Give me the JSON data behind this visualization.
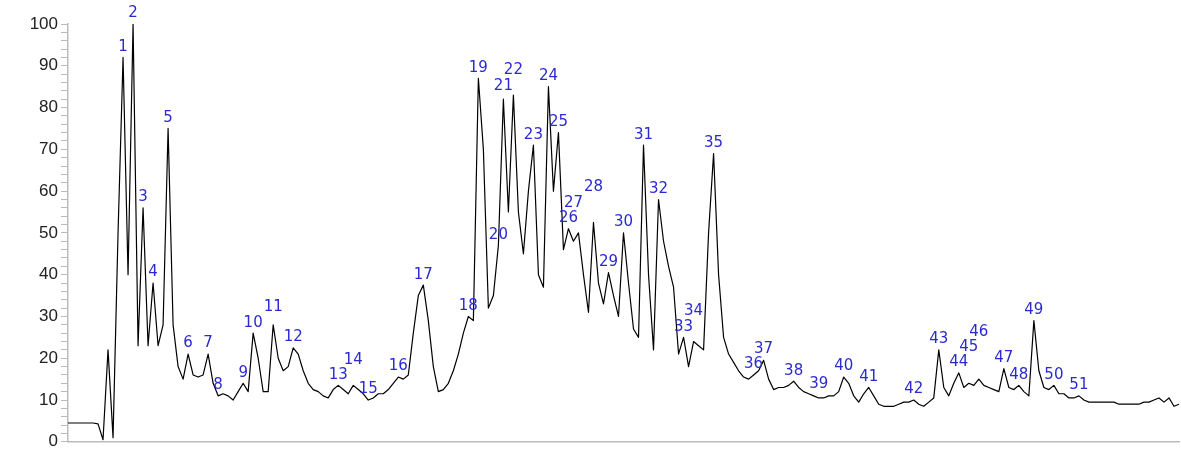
{
  "chart_data": {
    "type": "line",
    "categories": [
      null,
      null,
      null,
      null,
      null,
      null,
      null,
      null,
      null,
      null,
      null,
      null,
      null,
      null,
      null,
      null,
      null,
      null,
      null,
      null,
      null,
      null,
      null,
      null,
      null,
      null,
      null,
      null,
      null,
      null,
      null,
      null,
      null,
      null,
      null,
      null,
      null,
      null,
      null,
      null,
      null,
      null,
      null,
      null,
      null,
      null,
      null,
      null,
      null,
      null,
      null,
      null,
      null,
      null,
      null,
      null,
      null,
      null,
      null,
      null,
      null,
      null,
      null,
      null,
      null,
      null,
      null,
      null,
      null,
      null,
      null,
      null,
      null,
      null,
      null,
      null,
      null,
      null,
      null,
      null,
      null,
      null,
      null,
      null,
      null,
      null,
      null,
      null,
      null,
      null,
      null,
      null,
      null,
      null,
      null,
      null,
      null,
      null,
      null,
      null,
      null,
      null,
      null,
      null,
      null,
      null,
      null,
      null,
      null,
      null,
      null,
      null,
      null,
      null,
      null,
      null,
      null,
      null,
      null,
      null,
      null,
      null,
      null,
      null,
      null,
      null,
      null,
      null,
      null,
      null,
      null,
      null,
      null,
      null,
      null,
      null,
      null,
      null,
      null,
      null,
      null,
      null,
      null,
      null,
      null,
      null,
      null,
      null,
      null,
      null,
      null,
      null,
      null,
      null,
      null,
      null,
      null,
      null,
      null,
      null,
      null,
      null,
      null,
      null,
      null,
      null,
      null,
      null,
      null,
      null,
      null,
      null,
      null,
      null,
      null,
      null,
      null,
      null,
      null,
      null,
      null,
      null,
      null,
      null,
      null,
      null,
      null,
      null,
      null,
      null,
      null,
      null,
      null,
      null,
      null,
      null,
      null,
      null,
      null,
      null,
      null,
      null,
      null,
      null,
      null,
      null,
      null,
      null,
      null,
      null,
      null,
      null,
      null,
      null,
      null,
      null,
      null,
      null,
      null,
      null,
      null,
      null,
      null
    ],
    "series": [
      {
        "color": "#000000",
        "values": [
          4.5,
          4.5,
          4.5,
          4.5,
          4.5,
          4.5,
          4.3,
          0.5,
          22,
          1,
          50,
          92,
          40,
          100,
          23,
          56,
          23,
          38,
          23,
          28,
          75,
          28,
          18,
          15,
          21,
          16,
          15.5,
          16,
          21,
          14,
          11,
          11.5,
          11,
          10,
          12,
          14,
          12,
          26,
          20,
          12,
          12,
          28,
          20,
          17,
          18,
          22.5,
          21,
          17,
          14,
          12.5,
          12,
          11,
          10.5,
          12.5,
          13.5,
          12.5,
          11.5,
          13.5,
          12.5,
          11.5,
          10,
          10.5,
          11.5,
          11.5,
          12.5,
          14,
          15.5,
          15,
          16,
          26,
          35,
          37.5,
          29,
          18,
          12,
          12.5,
          14,
          17,
          21,
          26,
          30,
          29,
          87,
          70,
          32,
          35,
          47,
          82,
          55,
          83,
          55,
          45,
          60,
          71,
          40,
          37,
          85,
          60,
          74,
          46,
          51,
          48,
          50,
          40,
          31,
          52.5,
          38,
          33,
          40.5,
          35,
          30,
          50,
          38,
          27,
          25,
          71,
          40,
          22,
          58,
          48,
          42,
          37,
          21,
          25,
          18,
          24,
          23,
          22,
          50,
          69,
          40,
          25,
          21,
          19,
          17,
          15.5,
          15,
          16,
          17,
          19.5,
          15,
          12.5,
          13,
          13,
          13.5,
          14.5,
          13,
          12,
          11.5,
          11,
          10.5,
          10.5,
          11,
          11,
          12,
          15.5,
          14,
          11,
          9.5,
          11.5,
          13,
          11,
          9,
          8.5,
          8.5,
          8.5,
          9,
          9.5,
          9.5,
          10,
          9,
          8.5,
          9.5,
          10.5,
          22,
          13,
          11,
          14,
          16.5,
          13,
          14,
          13.5,
          15,
          13.5,
          13,
          12.5,
          12,
          17.5,
          13,
          12.5,
          13.5,
          12,
          11,
          29,
          17,
          13,
          12.5,
          13.5,
          11.5,
          11.5,
          10.5,
          10.5,
          11,
          10,
          9.5,
          9.5,
          9.5,
          9.5,
          9.5,
          9.5,
          9,
          9,
          9,
          9,
          9,
          9.5,
          9.5,
          10,
          10.5,
          9.5,
          10.5,
          8.5,
          9
        ]
      }
    ],
    "annotations": [
      {
        "text": "1",
        "y": 92
      },
      {
        "text": "2",
        "y": 100
      },
      {
        "text": "3",
        "y": 56
      },
      {
        "text": "4",
        "y": 38
      },
      {
        "text": "5",
        "y": 75
      },
      {
        "text": "6",
        "y": 21
      },
      {
        "text": "7",
        "y": 21
      },
      {
        "text": "8",
        "y": 11
      },
      {
        "text": "9",
        "y": 14
      },
      {
        "text": "10",
        "y": 26
      },
      {
        "text": "11",
        "y": 28
      },
      {
        "text": "12",
        "y": 22.5
      },
      {
        "text": "13",
        "y": 13.5
      },
      {
        "text": "14",
        "y": 13.5
      },
      {
        "text": "15",
        "y": 10
      },
      {
        "text": "16",
        "y": 15.5
      },
      {
        "text": "17",
        "y": 37.5
      },
      {
        "text": "18",
        "y": 30
      },
      {
        "text": "19",
        "y": 87
      },
      {
        "text": "20",
        "y": 47
      },
      {
        "text": "21",
        "y": 82
      },
      {
        "text": "22",
        "y": 83
      },
      {
        "text": "23",
        "y": 71
      },
      {
        "text": "24",
        "y": 85
      },
      {
        "text": "25",
        "y": 74
      },
      {
        "text": "26",
        "y": 51
      },
      {
        "text": "27",
        "y": 48
      },
      {
        "text": "28",
        "y": 52.5
      },
      {
        "text": "29",
        "y": 40.5
      },
      {
        "text": "30",
        "y": 50
      },
      {
        "text": "31",
        "y": 71
      },
      {
        "text": "32",
        "y": 58
      },
      {
        "text": "33",
        "y": 25
      },
      {
        "text": "34",
        "y": 24
      },
      {
        "text": "35",
        "y": 69
      },
      {
        "text": "36",
        "y": 16
      },
      {
        "text": "37",
        "y": 19.5
      },
      {
        "text": "38",
        "y": 14.5
      },
      {
        "text": "39",
        "y": 10.5
      },
      {
        "text": "40",
        "y": 15.5
      },
      {
        "text": "41",
        "y": 13
      },
      {
        "text": "42",
        "y": 10
      },
      {
        "text": "43",
        "y": 22
      },
      {
        "text": "44",
        "y": 16.5
      },
      {
        "text": "45",
        "y": 14
      },
      {
        "text": "46",
        "y": 15
      },
      {
        "text": "47",
        "y": 17.5
      },
      {
        "text": "48",
        "y": 13.5
      },
      {
        "text": "49",
        "y": 29
      },
      {
        "text": "50",
        "y": 13.5
      },
      {
        "text": "51",
        "y": 11
      }
    ],
    "ylim": [
      0,
      100
    ],
    "yticks": [
      0,
      {
        "value": 2,
        "label": null
      },
      {
        "value": 4,
        "label": null
      },
      {
        "value": 6,
        "label": null
      },
      {
        "value": 8,
        "label": null
      },
      10,
      {
        "value": 12,
        "label": null
      },
      {
        "value": 14,
        "label": null
      },
      {
        "value": 16,
        "label": null
      },
      {
        "value": 18,
        "label": null
      },
      20,
      {
        "value": 22,
        "label": null
      },
      {
        "value": 24,
        "label": null
      },
      {
        "value": 26,
        "label": null
      },
      {
        "value": 28,
        "label": null
      },
      30,
      {
        "value": 32,
        "label": null
      },
      {
        "value": 34,
        "label": null
      },
      {
        "value": 36,
        "label": null
      },
      {
        "value": 38,
        "label": null
      },
      40,
      {
        "value": 42,
        "label": null
      },
      {
        "value": 44,
        "label": null
      },
      {
        "value": 46,
        "label": null
      },
      {
        "value": 48,
        "label": null
      },
      50,
      {
        "value": 52,
        "label": null
      },
      {
        "value": 54,
        "label": null
      },
      {
        "value": 56,
        "label": null
      },
      {
        "value": 58,
        "label": null
      },
      60,
      {
        "value": 62,
        "label": null
      },
      {
        "value": 64,
        "label": null
      },
      {
        "value": 66,
        "label": null
      },
      {
        "value": 68,
        "label": null
      },
      70,
      {
        "value": 72,
        "label": null
      },
      {
        "value": 74,
        "label": null
      },
      {
        "value": 76,
        "label": null
      },
      {
        "value": 78,
        "label": null
      },
      80,
      {
        "value": 82,
        "label": null
      },
      {
        "value": 84,
        "label": null
      },
      {
        "value": 86,
        "label": null
      },
      {
        "value": 88,
        "label": null
      },
      90,
      {
        "value": 92,
        "label": null
      },
      {
        "value": 94,
        "label": null
      },
      {
        "value": 96,
        "label": null
      },
      {
        "value": 98,
        "label": null
      },
      100
    ],
    "tick_labels": "y",
    "grid": false,
    "legend": false,
    "marker": "none",
    "line_style": "solid"
  }
}
